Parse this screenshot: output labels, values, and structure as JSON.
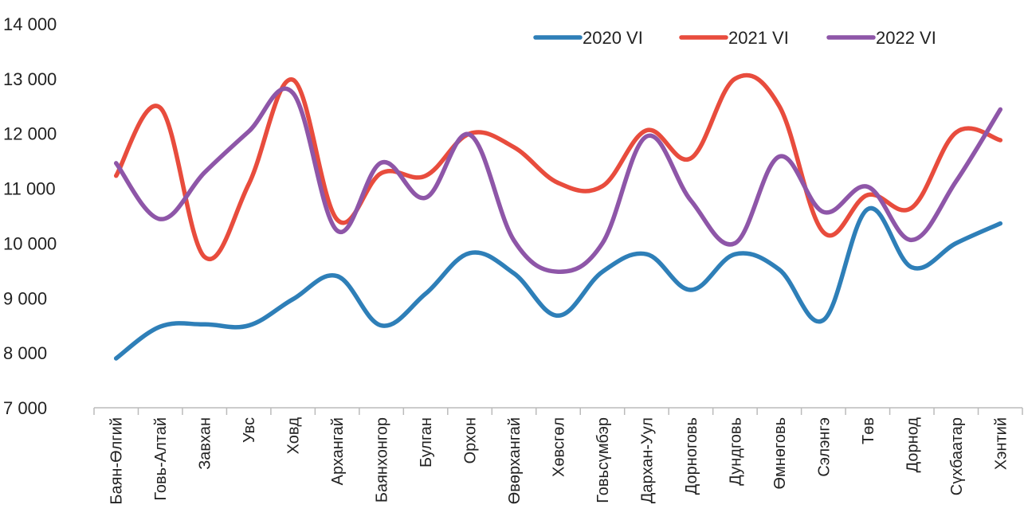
{
  "chart_data": {
    "type": "line",
    "title": "",
    "xlabel": "",
    "ylabel": "",
    "ylim": [
      7000,
      14000
    ],
    "y_ticks": [
      7000,
      8000,
      9000,
      10000,
      11000,
      12000,
      13000,
      14000
    ],
    "y_tick_labels": [
      "7 000",
      "8 000",
      "9 000",
      "10 000",
      "11 000",
      "12 000",
      "13 000",
      "14 000"
    ],
    "categories": [
      "Баян-Өлгий",
      "Говь-Алтай",
      "Завхан",
      "Увс",
      "Ховд",
      "Архангай",
      "Баянхонгор",
      "Булган",
      "Орхон",
      "Өвөрхангай",
      "Хөвсгөл",
      "Говьсүмбэр",
      "Дархан-Уул",
      "Дорноговь",
      "Дундговь",
      "Өмнөговь",
      "Сэлэнгэ",
      "Төв",
      "Дорнод",
      "Сүхбаатар",
      "Хэнтий"
    ],
    "grid": false,
    "legend_position": "top-right",
    "series": [
      {
        "name": "2020 VI",
        "color": "#2e7fb8",
        "values": [
          7900,
          8480,
          8520,
          8500,
          8980,
          9400,
          8500,
          9080,
          9820,
          9450,
          8680,
          9480,
          9800,
          9150,
          9800,
          9520,
          8600,
          10620,
          9560,
          10000,
          10360
        ]
      },
      {
        "name": "2021 VI",
        "color": "#e84c3d",
        "values": [
          11230,
          12470,
          9750,
          11080,
          12980,
          10430,
          11280,
          11230,
          12000,
          11750,
          11100,
          11040,
          12060,
          11550,
          13000,
          12500,
          10200,
          10880,
          10650,
          12020,
          11880
        ]
      },
      {
        "name": "2022 VI",
        "color": "#8e56a8",
        "values": [
          11460,
          10440,
          11290,
          12040,
          12740,
          10230,
          11470,
          10830,
          11980,
          10050,
          9480,
          10000,
          11950,
          10780,
          10000,
          11580,
          10570,
          11030,
          10060,
          11130,
          12440
        ]
      }
    ]
  }
}
